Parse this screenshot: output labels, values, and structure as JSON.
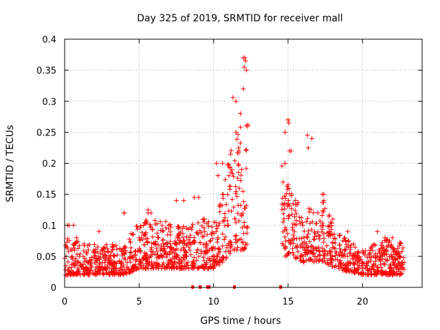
{
  "chart_data": {
    "type": "scatter",
    "title": "Day 325 of 2019, SRMTID for receiver mall",
    "xlabel": "GPS time / hours",
    "ylabel": "SRMTID / TECUs",
    "xlim": [
      0,
      24
    ],
    "ylim": [
      0,
      0.4
    ],
    "xticks": [
      0,
      5,
      10,
      15,
      20
    ],
    "xtick_labels": [
      "0",
      "5",
      "10",
      "15",
      "20"
    ],
    "yticks": [
      0,
      0.05,
      0.1,
      0.15,
      0.2,
      0.25,
      0.3,
      0.35,
      0.4
    ],
    "ytick_labels": [
      "0",
      "0.05",
      "0.1",
      "0.15",
      "0.2",
      "0.25",
      "0.3",
      "0.35",
      "0.4"
    ],
    "grid": true,
    "marker": "+",
    "color": "#ff0000",
    "gap_markers_x": [
      8.6,
      9.1,
      9.6,
      9.7,
      11.4,
      14.5
    ],
    "series": [
      {
        "name": "SRMTID",
        "description": "dense scatter of plus markers; key representative points (hours, TECU)",
        "x": [
          0.1,
          0.3,
          0.5,
          0.8,
          1.0,
          1.3,
          1.6,
          2.0,
          2.3,
          2.7,
          3.0,
          3.4,
          3.8,
          4.0,
          4.3,
          4.6,
          5.0,
          5.3,
          5.6,
          6.0,
          6.3,
          6.7,
          7.0,
          7.4,
          7.8,
          8.0,
          8.4,
          8.7,
          9.0,
          9.3,
          9.7,
          10.0,
          10.3,
          10.6,
          11.0,
          11.5,
          11.8,
          12.0,
          12.2,
          12.3,
          14.8,
          15.0,
          15.2,
          15.5,
          16.0,
          16.3,
          16.6,
          17.0,
          17.4,
          17.8,
          18.0,
          18.5,
          19.0,
          19.5,
          20.0,
          20.5,
          21.0,
          21.5,
          22.0,
          22.5,
          22.8
        ],
        "y": [
          0.05,
          0.1,
          0.06,
          0.08,
          0.05,
          0.07,
          0.04,
          0.05,
          0.03,
          0.04,
          0.05,
          0.04,
          0.06,
          0.12,
          0.03,
          0.05,
          0.08,
          0.1,
          0.12,
          0.07,
          0.08,
          0.06,
          0.1,
          0.07,
          0.06,
          0.14,
          0.06,
          0.08,
          0.05,
          0.11,
          0.06,
          0.05,
          0.08,
          0.2,
          0.1,
          0.3,
          0.28,
          0.37,
          0.35,
          0.26,
          0.2,
          0.27,
          0.22,
          0.14,
          0.1,
          0.08,
          0.24,
          0.12,
          0.15,
          0.09,
          0.05,
          0.04,
          0.05,
          0.04,
          0.03,
          0.06,
          0.05,
          0.08,
          0.05,
          0.05,
          0.04
        ]
      }
    ]
  }
}
